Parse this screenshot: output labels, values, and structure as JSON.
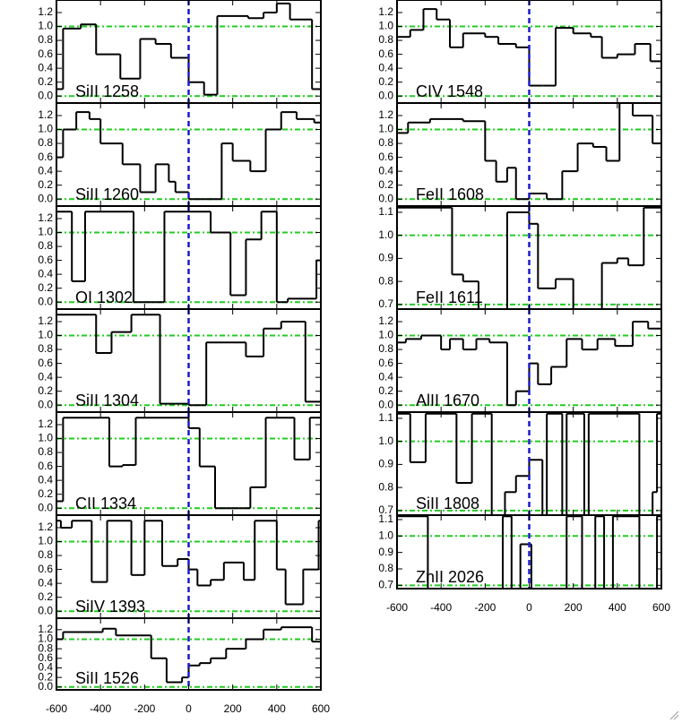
{
  "chart_data": [
    {
      "type": "step",
      "label": "SiII 1258",
      "x": [
        -600,
        -570,
        -490,
        -420,
        -310,
        -220,
        -150,
        -80,
        0,
        70,
        130,
        270,
        340,
        400,
        460,
        560
      ],
      "values": [
        0.1,
        0.97,
        1.03,
        0.6,
        0.25,
        0.82,
        0.75,
        0.55,
        0.2,
        0.02,
        1.15,
        1.12,
        1.2,
        1.33,
        1.1,
        0.1
      ],
      "xlim": [
        -600,
        600
      ],
      "xticks": [
        -600,
        -400,
        -200,
        0,
        200,
        400,
        600
      ],
      "ylim": [
        -0.1,
        1.38
      ],
      "yticks": [
        {
          "value": 0,
          "label": "0.0"
        },
        0.2,
        0.4,
        0.6,
        0.8,
        {
          "value": 1,
          "label": "1.0"
        },
        1.2
      ],
      "hlines": [
        0,
        1
      ],
      "vline": 0,
      "color": "#000000"
    },
    {
      "type": "step",
      "label": "SiII 1260",
      "x": [
        -600,
        -570,
        -510,
        -450,
        -400,
        -300,
        -220,
        -150,
        -90,
        -60,
        0,
        150,
        200,
        280,
        350,
        420,
        490,
        570
      ],
      "values": [
        0.6,
        1.0,
        1.25,
        1.15,
        0.8,
        0.5,
        0.1,
        0.5,
        0.25,
        0.1,
        0.0,
        0.8,
        0.55,
        0.4,
        1.0,
        1.25,
        1.15,
        1.1
      ],
      "xlim": [
        -600,
        600
      ],
      "xticks": [
        -600,
        -400,
        -200,
        0,
        200,
        400,
        600
      ],
      "ylim": [
        -0.1,
        1.38
      ],
      "yticks": [
        {
          "value": 0,
          "label": "0.0"
        },
        0.2,
        0.4,
        0.6,
        0.8,
        {
          "value": 1,
          "label": "1.0"
        },
        1.2
      ],
      "hlines": [
        0,
        1
      ],
      "vline": 0,
      "color": "#000000"
    },
    {
      "type": "step",
      "label": "OI 1302",
      "x": [
        -600,
        -530,
        -470,
        -250,
        -110,
        0,
        100,
        190,
        260,
        330,
        400,
        450,
        580
      ],
      "values": [
        1.3,
        0.3,
        1.3,
        0.0,
        1.3,
        1.3,
        1.0,
        0.1,
        0.9,
        1.3,
        0.0,
        0.05,
        0.6
      ],
      "xlim": [
        -600,
        600
      ],
      "xticks": [
        -600,
        -400,
        -200,
        0,
        200,
        400,
        600
      ],
      "ylim": [
        -0.1,
        1.38
      ],
      "yticks": [
        {
          "value": 0,
          "label": "0.0"
        },
        0.2,
        0.4,
        0.6,
        0.8,
        {
          "value": 1,
          "label": "1.0"
        },
        1.2
      ],
      "hlines": [
        0,
        1
      ],
      "vline": 0,
      "color": "#000000"
    },
    {
      "type": "step",
      "label": "SiII 1304",
      "x": [
        -600,
        -420,
        -350,
        -260,
        -130,
        0,
        80,
        260,
        340,
        420,
        530
      ],
      "values": [
        1.3,
        0.75,
        1.05,
        1.3,
        0.02,
        0.0,
        0.9,
        0.7,
        1.1,
        1.2,
        0.05
      ],
      "xlim": [
        -600,
        600
      ],
      "xticks": [
        -600,
        -400,
        -200,
        0,
        200,
        400,
        600
      ],
      "ylim": [
        -0.1,
        1.38
      ],
      "yticks": [
        {
          "value": 0,
          "label": "0.0"
        },
        0.2,
        0.4,
        0.6,
        0.8,
        {
          "value": 1,
          "label": "1.0"
        },
        1.2
      ],
      "hlines": [
        0,
        1
      ],
      "vline": 0,
      "color": "#000000"
    },
    {
      "type": "step",
      "label": "CII 1334",
      "x": [
        -600,
        -570,
        -360,
        -300,
        -240,
        0,
        50,
        120,
        280,
        350,
        480,
        550
      ],
      "values": [
        0.1,
        1.3,
        0.6,
        0.62,
        1.3,
        1.15,
        0.6,
        0.0,
        0.3,
        1.3,
        0.7,
        1.3
      ],
      "xlim": [
        -600,
        600
      ],
      "xticks": [
        -600,
        -400,
        -200,
        0,
        200,
        400,
        600
      ],
      "ylim": [
        -0.1,
        1.38
      ],
      "yticks": [
        {
          "value": 0,
          "label": "0.0"
        },
        0.2,
        0.4,
        0.6,
        0.8,
        {
          "value": 1,
          "label": "1.0"
        },
        1.2
      ],
      "hlines": [
        0,
        1
      ],
      "vline": 0,
      "color": "#000000"
    },
    {
      "type": "step",
      "label": "SiIV 1393",
      "x": [
        -600,
        -580,
        -530,
        -440,
        -370,
        -260,
        -200,
        -120,
        -50,
        0,
        40,
        100,
        160,
        250,
        300,
        400,
        440,
        520,
        590
      ],
      "values": [
        1.3,
        1.2,
        1.3,
        0.42,
        1.3,
        0.52,
        1.3,
        0.65,
        0.75,
        0.6,
        0.37,
        0.45,
        0.7,
        0.45,
        1.3,
        0.6,
        0.1,
        0.6,
        1.3
      ],
      "xlim": [
        -600,
        600
      ],
      "xticks": [
        -600,
        -400,
        -200,
        0,
        200,
        400,
        600
      ],
      "ylim": [
        -0.1,
        1.38
      ],
      "yticks": [
        {
          "value": 0,
          "label": "0.0"
        },
        0.2,
        0.4,
        0.6,
        0.8,
        {
          "value": 1,
          "label": "1.0"
        },
        1.2
      ],
      "hlines": [
        0,
        1
      ],
      "vline": 0,
      "color": "#000000"
    },
    {
      "type": "step",
      "label": "SiII 1526",
      "x": [
        -600,
        -570,
        -390,
        -330,
        -170,
        -100,
        -30,
        0,
        50,
        100,
        170,
        260,
        340,
        420,
        560
      ],
      "values": [
        1.0,
        1.15,
        1.22,
        1.08,
        0.6,
        0.1,
        0.2,
        0.45,
        0.5,
        0.6,
        0.8,
        1.0,
        1.2,
        1.25,
        0.95
      ],
      "xlim": [
        -600,
        600
      ],
      "xticks": [
        -600,
        -400,
        -200,
        0,
        200,
        400,
        600
      ],
      "show_xtick_labels": true,
      "ylim": [
        -0.06,
        1.44
      ],
      "yticks": [
        {
          "value": 0,
          "label": "0.0"
        },
        0.2,
        0.4,
        0.6,
        0.8,
        {
          "value": 1,
          "label": "1.0"
        },
        1.2
      ],
      "hlines": [
        0,
        1
      ],
      "vline": 0,
      "color": "#000000"
    },
    {
      "type": "step",
      "label": "CIV 1548",
      "x": [
        -600,
        -540,
        -480,
        -420,
        -360,
        -300,
        -200,
        -140,
        -60,
        0,
        60,
        120,
        200,
        280,
        330,
        400,
        480,
        550
      ],
      "values": [
        0.85,
        0.95,
        1.25,
        1.1,
        0.7,
        0.9,
        0.85,
        0.75,
        0.7,
        0.15,
        0.15,
        0.98,
        0.9,
        0.85,
        0.55,
        0.6,
        0.75,
        0.5
      ],
      "xlim": [
        -600,
        600
      ],
      "xticks": [
        -600,
        -400,
        -200,
        0,
        200,
        400,
        600
      ],
      "ylim": [
        -0.1,
        1.38
      ],
      "yticks": [
        {
          "value": 0,
          "label": "0.0"
        },
        0.2,
        0.4,
        0.6,
        0.8,
        {
          "value": 1,
          "label": "1.0"
        },
        1.2
      ],
      "hlines": [
        0,
        1
      ],
      "vline": 0,
      "color": "#000000"
    },
    {
      "type": "step",
      "label": "FeII 1608",
      "x": [
        -600,
        -550,
        -450,
        -300,
        -200,
        -150,
        -100,
        -60,
        0,
        80,
        150,
        220,
        290,
        350,
        410,
        470,
        560
      ],
      "values": [
        0.95,
        1.1,
        1.15,
        1.12,
        0.55,
        0.25,
        0.45,
        0.0,
        0.08,
        0.0,
        0.4,
        0.8,
        0.75,
        0.55,
        1.4,
        1.2,
        0.8
      ],
      "xlim": [
        -600,
        600
      ],
      "xticks": [
        -600,
        -400,
        -200,
        0,
        200,
        400,
        600
      ],
      "ylim": [
        -0.1,
        1.38
      ],
      "yticks": [
        {
          "value": 0,
          "label": "0.0"
        },
        0.2,
        0.4,
        0.6,
        0.8,
        {
          "value": 1,
          "label": "1.0"
        },
        1.2
      ],
      "hlines": [
        0,
        1
      ],
      "vline": 0,
      "color": "#000000"
    },
    {
      "type": "step",
      "label": "FeII 1611",
      "x": [
        -600,
        -350,
        -300,
        -230,
        -100,
        0,
        40,
        120,
        200,
        330,
        400,
        450,
        520
      ],
      "values": [
        1.12,
        0.83,
        0.8,
        0.68,
        1.1,
        1.05,
        0.77,
        0.81,
        0.68,
        0.88,
        0.9,
        0.87,
        1.12
      ],
      "xlim": [
        -600,
        600
      ],
      "xticks": [
        -600,
        -400,
        -200,
        0,
        200,
        400,
        600
      ],
      "ylim": [
        0.68,
        1.127
      ],
      "yticks": [
        0.7,
        0.8,
        0.9,
        {
          "value": 1,
          "label": "1.0"
        },
        1.1
      ],
      "hlines": [
        0.7,
        1
      ],
      "vline": 0,
      "color": "#000000"
    },
    {
      "type": "step",
      "label": "AlII 1670",
      "x": [
        -600,
        -560,
        -490,
        -400,
        -360,
        -300,
        -240,
        -180,
        -100,
        -60,
        0,
        40,
        100,
        170,
        240,
        310,
        390,
        470,
        540
      ],
      "values": [
        0.9,
        0.95,
        1.0,
        0.8,
        0.95,
        0.8,
        0.95,
        0.9,
        0.0,
        0.2,
        0.6,
        0.3,
        0.55,
        0.95,
        0.8,
        0.95,
        0.85,
        1.2,
        1.1
      ],
      "xlim": [
        -600,
        600
      ],
      "xticks": [
        -600,
        -400,
        -200,
        0,
        200,
        400,
        600
      ],
      "ylim": [
        -0.1,
        1.38
      ],
      "yticks": [
        {
          "value": 0,
          "label": "0.0"
        },
        0.2,
        0.4,
        0.6,
        0.8,
        {
          "value": 1,
          "label": "1.0"
        },
        1.2
      ],
      "hlines": [
        0,
        1
      ],
      "vline": 0,
      "color": "#000000"
    },
    {
      "type": "step",
      "label": "SiII 1808",
      "x": [
        -600,
        -540,
        -470,
        -330,
        -260,
        -170,
        -110,
        -60,
        0,
        60,
        80,
        150,
        170,
        250,
        270,
        500,
        560,
        580
      ],
      "values": [
        1.12,
        0.91,
        1.12,
        0.82,
        1.12,
        0.68,
        0.78,
        0.85,
        0.92,
        0.68,
        1.12,
        0.68,
        1.12,
        0.68,
        1.12,
        0.68,
        0.78,
        1.12
      ],
      "xlim": [
        -600,
        600
      ],
      "xticks": [
        -600,
        -400,
        -200,
        0,
        200,
        400,
        600
      ],
      "ylim": [
        0.68,
        1.127
      ],
      "yticks": [
        0.7,
        0.8,
        0.9,
        {
          "value": 1,
          "label": "1.0"
        },
        1.1
      ],
      "hlines": [
        0.7,
        1
      ],
      "vline": 0,
      "color": "#000000"
    },
    {
      "type": "step",
      "label": "ZnII 2026",
      "x": [
        -600,
        -460,
        -120,
        -80,
        -40,
        10,
        170,
        240,
        300,
        340,
        380,
        500,
        580
      ],
      "values": [
        1.12,
        0.68,
        1.12,
        0.68,
        0.95,
        0.68,
        1.12,
        0.68,
        1.12,
        0.68,
        1.12,
        0.68,
        1.12
      ],
      "xlim": [
        -600,
        600
      ],
      "xticks": [
        -600,
        -400,
        -200,
        0,
        200,
        400,
        600
      ],
      "show_xtick_labels": true,
      "ylim": [
        0.68,
        1.127
      ],
      "yticks": [
        0.7,
        0.8,
        0.9,
        {
          "value": 1,
          "label": "1.0"
        },
        1.1
      ],
      "hlines": [
        0.7,
        1
      ],
      "vline": 0,
      "color": "#000000"
    }
  ]
}
